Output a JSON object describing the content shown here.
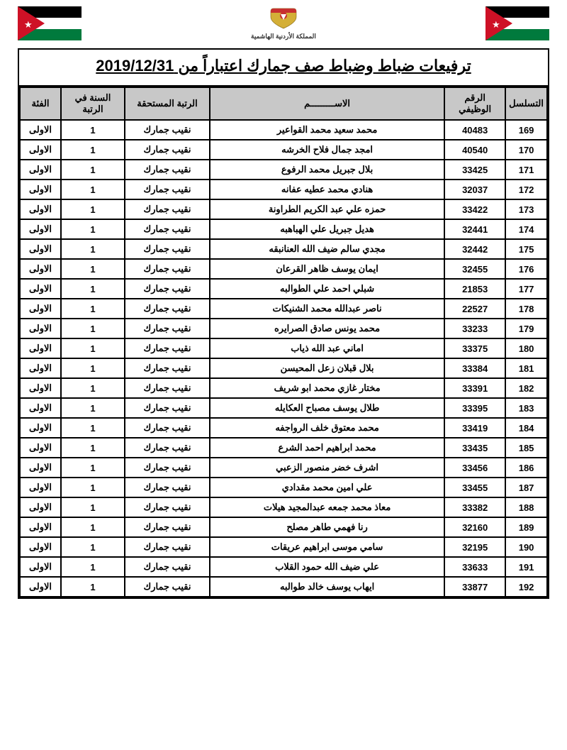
{
  "title": "ترفيعات ضباط وضباط صف جمارك اعتباراً من 2019/12/31",
  "emblem_text": "المملكة الأردنية الهاشمية",
  "columns": {
    "seq": "التسلسل",
    "empid": "الرقم الوظيفي",
    "name": "الاســـــــــم",
    "rank": "الرتبة المستحقة",
    "years": "السنة في الرتبة",
    "category": "الفئة"
  },
  "colors": {
    "header_bg": "#c8c8c8",
    "border": "#000000",
    "background": "#ffffff",
    "text": "#000000"
  },
  "rows": [
    {
      "seq": "169",
      "empid": "40483",
      "name": "محمد سعيد محمد القواعير",
      "rank": "نقيب جمارك",
      "years": "1",
      "category": "الاولى"
    },
    {
      "seq": "170",
      "empid": "40540",
      "name": "امجد جمال فلاح الخرشه",
      "rank": "نقيب جمارك",
      "years": "1",
      "category": "الاولى"
    },
    {
      "seq": "171",
      "empid": "33425",
      "name": "بلال جبريل محمد الرفوع",
      "rank": "نقيب جمارك",
      "years": "1",
      "category": "الاولى"
    },
    {
      "seq": "172",
      "empid": "32037",
      "name": "هنادي محمد عطيه عفانه",
      "rank": "نقيب جمارك",
      "years": "1",
      "category": "الاولى"
    },
    {
      "seq": "173",
      "empid": "33422",
      "name": "حمزه علي عبد الكريم الطراونة",
      "rank": "نقيب جمارك",
      "years": "1",
      "category": "الاولى"
    },
    {
      "seq": "174",
      "empid": "32441",
      "name": "هديل جبريل علي الهباهبه",
      "rank": "نقيب جمارك",
      "years": "1",
      "category": "الاولى"
    },
    {
      "seq": "175",
      "empid": "32442",
      "name": "مجدي سالم ضيف الله العنانبقه",
      "rank": "نقيب جمارك",
      "years": "1",
      "category": "الاولى"
    },
    {
      "seq": "176",
      "empid": "32455",
      "name": "ايمان يوسف ظاهر القرعان",
      "rank": "نقيب جمارك",
      "years": "1",
      "category": "الاولى"
    },
    {
      "seq": "177",
      "empid": "21853",
      "name": "شبلي احمد علي الطوالبه",
      "rank": "نقيب جمارك",
      "years": "1",
      "category": "الاولى"
    },
    {
      "seq": "178",
      "empid": "22527",
      "name": "ناصر عبدالله محمد الشنيكات",
      "rank": "نقيب جمارك",
      "years": "1",
      "category": "الاولى"
    },
    {
      "seq": "179",
      "empid": "33233",
      "name": "محمد يونس صادق الصرايره",
      "rank": "نقيب جمارك",
      "years": "1",
      "category": "الاولى"
    },
    {
      "seq": "180",
      "empid": "33375",
      "name": "اماني عبد الله ذياب",
      "rank": "نقيب جمارك",
      "years": "1",
      "category": "الاولى"
    },
    {
      "seq": "181",
      "empid": "33384",
      "name": "بلال قبلان زعل المحيسن",
      "rank": "نقيب جمارك",
      "years": "1",
      "category": "الاولى"
    },
    {
      "seq": "182",
      "empid": "33391",
      "name": "مختار غازي محمد ابو شريف",
      "rank": "نقيب جمارك",
      "years": "1",
      "category": "الاولى"
    },
    {
      "seq": "183",
      "empid": "33395",
      "name": "طلال يوسف مصباح العكايله",
      "rank": "نقيب جمارك",
      "years": "1",
      "category": "الاولى"
    },
    {
      "seq": "184",
      "empid": "33419",
      "name": "محمد معتوق خلف الرواجفه",
      "rank": "نقيب جمارك",
      "years": "1",
      "category": "الاولى"
    },
    {
      "seq": "185",
      "empid": "33435",
      "name": "محمد ابراهيم احمد الشرع",
      "rank": "نقيب جمارك",
      "years": "1",
      "category": "الاولى"
    },
    {
      "seq": "186",
      "empid": "33456",
      "name": "اشرف خضر منصور الزعبي",
      "rank": "نقيب جمارك",
      "years": "1",
      "category": "الاولى"
    },
    {
      "seq": "187",
      "empid": "33455",
      "name": "علي امين محمد مقدادي",
      "rank": "نقيب جمارك",
      "years": "1",
      "category": "الاولى"
    },
    {
      "seq": "188",
      "empid": "33382",
      "name": "معاذ محمد جمعه عبدالمجيد هيلات",
      "rank": "نقيب جمارك",
      "years": "1",
      "category": "الاولى"
    },
    {
      "seq": "189",
      "empid": "32160",
      "name": "رنا فهمي طاهر مصلح",
      "rank": "نقيب جمارك",
      "years": "1",
      "category": "الاولى"
    },
    {
      "seq": "190",
      "empid": "32195",
      "name": "سامي موسى ابراهيم عريقات",
      "rank": "نقيب جمارك",
      "years": "1",
      "category": "الاولى"
    },
    {
      "seq": "191",
      "empid": "33633",
      "name": "علي ضيف الله حمود القلاب",
      "rank": "نقيب جمارك",
      "years": "1",
      "category": "الاولى"
    },
    {
      "seq": "192",
      "empid": "33877",
      "name": "ايهاب يوسف خالد طوالبه",
      "rank": "نقيب جمارك",
      "years": "1",
      "category": "الاولى"
    }
  ]
}
